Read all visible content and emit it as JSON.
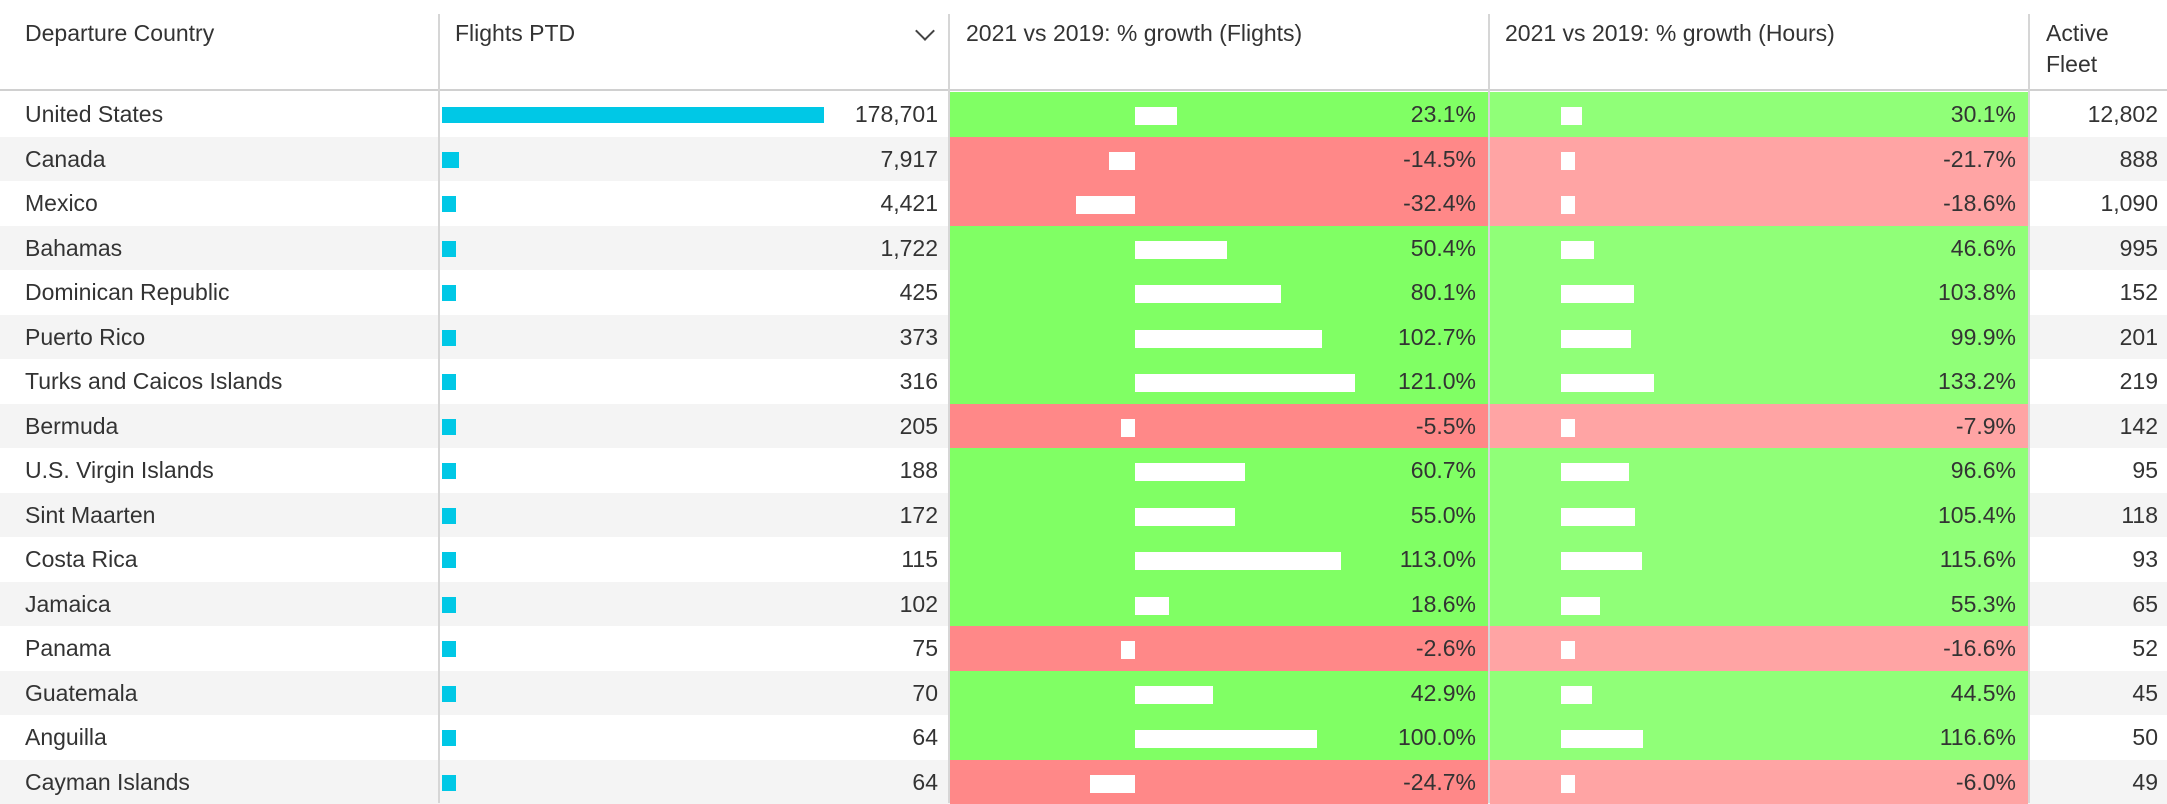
{
  "headers": {
    "country": "Departure Country",
    "flights": "Flights PTD",
    "growth_flights": "2021 vs 2019: % growth (Flights)",
    "growth_hours": "2021 vs 2019: % growth (Hours)",
    "fleet_line1": "Active",
    "fleet_line2": "Fleet"
  },
  "colors": {
    "flights_bar": "#00c8e6",
    "positive_dark": "#80ff64",
    "positive_light": "#90ff78",
    "negative_dark": "#ff8888",
    "negative_light": "#ffa4a4"
  },
  "rows": [
    {
      "country": "United States",
      "flights": 178701,
      "flights_label": "178,701",
      "gf": 23.1,
      "gf_label": "23.1%",
      "gh": 30.1,
      "gh_label": "30.1%",
      "fleet": "12,802"
    },
    {
      "country": "Canada",
      "flights": 7917,
      "flights_label": "7,917",
      "gf": -14.5,
      "gf_label": "-14.5%",
      "gh": -21.7,
      "gh_label": "-21.7%",
      "fleet": "888"
    },
    {
      "country": "Mexico",
      "flights": 4421,
      "flights_label": "4,421",
      "gf": -32.4,
      "gf_label": "-32.4%",
      "gh": -18.6,
      "gh_label": "-18.6%",
      "fleet": "1,090"
    },
    {
      "country": "Bahamas",
      "flights": 1722,
      "flights_label": "1,722",
      "gf": 50.4,
      "gf_label": "50.4%",
      "gh": 46.6,
      "gh_label": "46.6%",
      "fleet": "995"
    },
    {
      "country": "Dominican Republic",
      "flights": 425,
      "flights_label": "425",
      "gf": 80.1,
      "gf_label": "80.1%",
      "gh": 103.8,
      "gh_label": "103.8%",
      "fleet": "152"
    },
    {
      "country": "Puerto Rico",
      "flights": 373,
      "flights_label": "373",
      "gf": 102.7,
      "gf_label": "102.7%",
      "gh": 99.9,
      "gh_label": "99.9%",
      "fleet": "201"
    },
    {
      "country": "Turks and Caicos Islands",
      "flights": 316,
      "flights_label": "316",
      "gf": 121.0,
      "gf_label": "121.0%",
      "gh": 133.2,
      "gh_label": "133.2%",
      "fleet": "219"
    },
    {
      "country": "Bermuda",
      "flights": 205,
      "flights_label": "205",
      "gf": -5.5,
      "gf_label": "-5.5%",
      "gh": -7.9,
      "gh_label": "-7.9%",
      "fleet": "142"
    },
    {
      "country": "U.S. Virgin Islands",
      "flights": 188,
      "flights_label": "188",
      "gf": 60.7,
      "gf_label": "60.7%",
      "gh": 96.6,
      "gh_label": "96.6%",
      "fleet": "95"
    },
    {
      "country": "Sint Maarten",
      "flights": 172,
      "flights_label": "172",
      "gf": 55.0,
      "gf_label": "55.0%",
      "gh": 105.4,
      "gh_label": "105.4%",
      "fleet": "118"
    },
    {
      "country": "Costa Rica",
      "flights": 115,
      "flights_label": "115",
      "gf": 113.0,
      "gf_label": "113.0%",
      "gh": 115.6,
      "gh_label": "115.6%",
      "fleet": "93"
    },
    {
      "country": "Jamaica",
      "flights": 102,
      "flights_label": "102",
      "gf": 18.6,
      "gf_label": "18.6%",
      "gh": 55.3,
      "gh_label": "55.3%",
      "fleet": "65"
    },
    {
      "country": "Panama",
      "flights": 75,
      "flights_label": "75",
      "gf": -2.6,
      "gf_label": "-2.6%",
      "gh": -16.6,
      "gh_label": "-16.6%",
      "fleet": "52"
    },
    {
      "country": "Guatemala",
      "flights": 70,
      "flights_label": "70",
      "gf": 42.9,
      "gf_label": "42.9%",
      "gh": 44.5,
      "gh_label": "44.5%",
      "fleet": "45"
    },
    {
      "country": "Anguilla",
      "flights": 64,
      "flights_label": "64",
      "gf": 100.0,
      "gf_label": "100.0%",
      "gh": 116.6,
      "gh_label": "116.6%",
      "fleet": "50"
    },
    {
      "country": "Cayman Islands",
      "flights": 64,
      "flights_label": "64",
      "gf": -24.7,
      "gf_label": "-24.7%",
      "gh": -6.0,
      "gh_label": "-6.0%",
      "fleet": "49"
    }
  ]
}
